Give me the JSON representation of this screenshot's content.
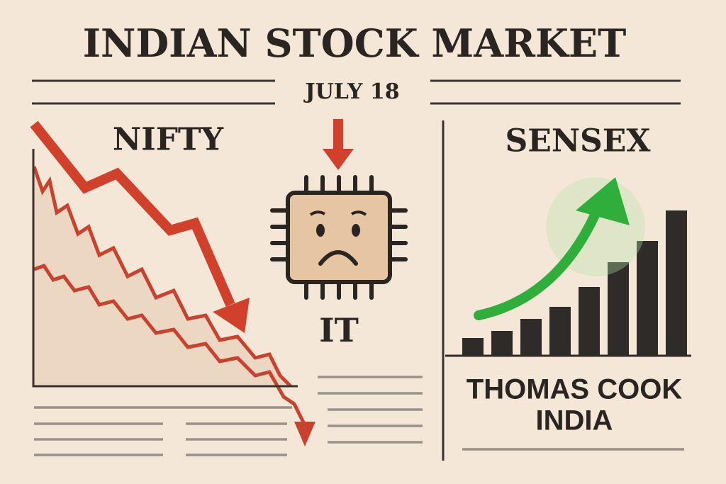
{
  "header": {
    "title": "INDIAN STOCK MARKET",
    "date": "JULY 18"
  },
  "panels": {
    "nifty": "NIFTY",
    "it": "IT",
    "sensex": "SENSEX",
    "company": [
      "THOMAS COOK",
      "INDIA"
    ]
  }
}
